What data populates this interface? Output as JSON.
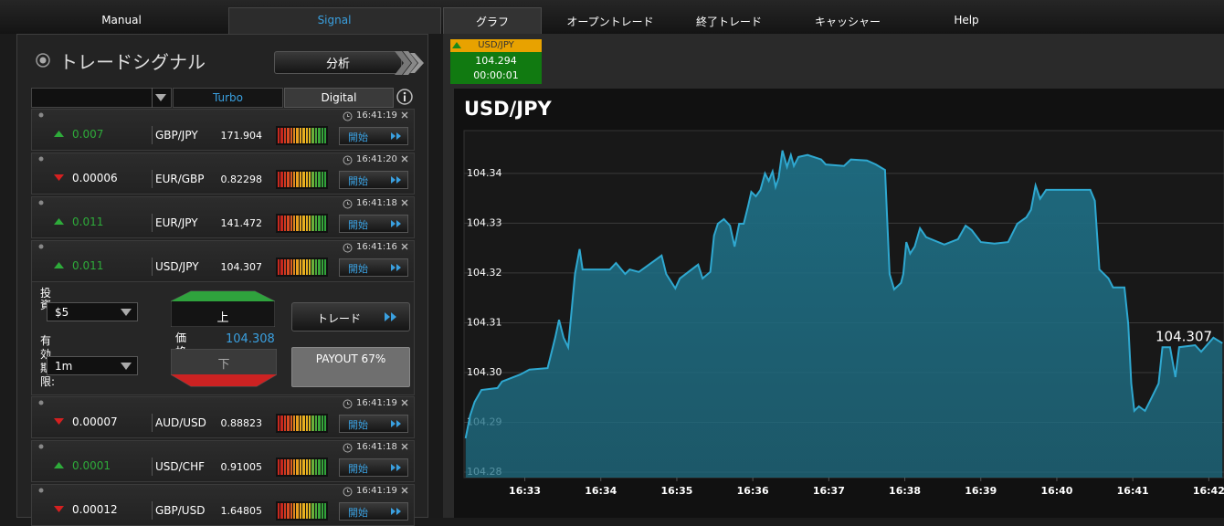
{
  "nav": {
    "tabs": [
      "Manual",
      "Signal",
      "グラフ",
      "オープントレード",
      "終了トレード",
      "キャッシャー",
      "Help"
    ]
  },
  "signal_panel": {
    "title": "トレードシグナル",
    "analyze_button": "分析",
    "filter_tabs": [
      "Turbo",
      "Digital"
    ],
    "rows": [
      {
        "direction": "up",
        "change": "0.007",
        "pair": "GBP/JPY",
        "price": "171.904",
        "time": "16:41:19",
        "button": "開始"
      },
      {
        "direction": "down",
        "change": "0.00006",
        "pair": "EUR/GBP",
        "price": "0.82298",
        "time": "16:41:20",
        "button": "開始"
      },
      {
        "direction": "up",
        "change": "0.011",
        "pair": "EUR/JPY",
        "price": "141.472",
        "time": "16:41:18",
        "button": "開始"
      },
      {
        "direction": "up",
        "change": "0.011",
        "pair": "USD/JPY",
        "price": "104.307",
        "time": "16:41:16",
        "button": "開始"
      },
      {
        "direction": "down",
        "change": "0.00007",
        "pair": "AUD/USD",
        "price": "0.88823",
        "time": "16:41:19",
        "button": "開始"
      },
      {
        "direction": "up",
        "change": "0.0001",
        "pair": "USD/CHF",
        "price": "0.91005",
        "time": "16:41:18",
        "button": "開始"
      },
      {
        "direction": "down",
        "change": "0.00012",
        "pair": "GBP/USD",
        "price": "1.64805",
        "time": "16:41:19",
        "button": "開始"
      }
    ],
    "order": {
      "investment_label": "投資:",
      "investment": "$5",
      "expiry_label": "有効期限:",
      "expiry": "1m",
      "up_button": "上",
      "price_label": "価格",
      "price": "104.308",
      "down_button": "下",
      "trade_button": "トレード",
      "payout": "PAYOUT 67%"
    }
  },
  "ticker": {
    "pair": "USD/JPY",
    "price": "104.294",
    "countdown": "00:00:01"
  },
  "chart_data": {
    "type": "area",
    "title": "USD/JPY",
    "annotation": "104.307",
    "color": "#2fa8d0",
    "fill": "#1e6d83",
    "grid": true,
    "x": [
      32.22,
      32.28,
      32.34,
      32.43,
      32.64,
      32.7,
      32.94,
      33.06,
      33.3,
      33.4,
      33.45,
      33.51,
      33.57,
      33.66,
      33.72,
      33.76,
      34.12,
      34.2,
      34.32,
      34.38,
      34.5,
      34.8,
      34.86,
      34.98,
      35.04,
      35.28,
      35.34,
      35.44,
      35.49,
      35.54,
      35.62,
      35.7,
      35.76,
      35.82,
      35.88,
      35.94,
      35.98,
      36.04,
      36.1,
      36.16,
      36.21,
      36.26,
      36.3,
      36.34,
      36.39,
      36.45,
      36.5,
      36.54,
      36.6,
      36.72,
      36.9,
      36.96,
      37.2,
      37.29,
      37.5,
      37.62,
      37.74,
      37.8,
      37.86,
      37.95,
      37.98,
      38.02,
      38.07,
      38.13,
      38.2,
      38.28,
      38.52,
      38.7,
      38.8,
      38.88,
      39.0,
      39.18,
      39.36,
      39.48,
      39.6,
      39.66,
      39.72,
      39.78,
      39.86,
      40.44,
      40.5,
      40.56,
      40.68,
      40.74,
      40.89,
      40.94,
      40.98,
      41.02,
      41.08,
      41.16,
      41.22,
      41.34,
      41.39,
      41.49,
      41.56,
      41.61,
      41.82,
      41.9,
      42.06,
      42.18
    ],
    "values": [
      104.2868,
      104.2914,
      104.2941,
      104.2965,
      104.2969,
      104.2982,
      104.2996,
      104.3006,
      104.3009,
      104.307,
      104.3106,
      104.307,
      104.3051,
      104.3198,
      104.3248,
      104.3207,
      104.3207,
      104.322,
      104.3198,
      104.3207,
      104.3202,
      104.3235,
      104.3198,
      104.3169,
      104.3189,
      104.3217,
      104.3189,
      104.3202,
      104.3275,
      104.3299,
      104.3308,
      104.3295,
      104.3253,
      104.3299,
      104.3299,
      104.3336,
      104.3363,
      104.3354,
      104.3367,
      104.34,
      104.3385,
      104.3404,
      104.3373,
      104.3391,
      104.3446,
      104.3413,
      104.3437,
      104.3415,
      104.3433,
      104.3437,
      104.3428,
      104.3418,
      104.3415,
      104.3428,
      104.3426,
      104.3418,
      104.3407,
      104.3198,
      104.3167,
      104.318,
      104.3198,
      104.3262,
      104.3239,
      104.3253,
      104.329,
      104.3272,
      104.3257,
      104.3268,
      104.3295,
      104.3286,
      104.3262,
      104.3259,
      104.3262,
      104.3299,
      104.3312,
      104.3327,
      104.3376,
      104.3349,
      104.3367,
      104.3367,
      104.3345,
      104.3207,
      104.3189,
      104.3171,
      104.3171,
      104.3097,
      104.2978,
      104.2923,
      104.2932,
      104.2923,
      104.2941,
      104.2978,
      104.3051,
      104.3051,
      104.2991,
      104.3051,
      104.3055,
      104.3042,
      104.307,
      104.3059
    ],
    "xlim": [
      32.2,
      42.2
    ],
    "ylim": [
      104.2789,
      104.3486
    ],
    "xticks": [
      {
        "value": 33,
        "label": "16:33"
      },
      {
        "value": 34,
        "label": "16:34"
      },
      {
        "value": 35,
        "label": "16:35"
      },
      {
        "value": 36,
        "label": "16:36"
      },
      {
        "value": 37,
        "label": "16:37"
      },
      {
        "value": 38,
        "label": "16:38"
      },
      {
        "value": 39,
        "label": "16:39"
      },
      {
        "value": 40,
        "label": "16:40"
      },
      {
        "value": 41,
        "label": "16:41"
      },
      {
        "value": 42,
        "label": "16:42"
      }
    ],
    "yticks": [
      104.28,
      104.29,
      {
        "value": 104.3,
        "label": "104.30"
      },
      104.31,
      104.32,
      104.33,
      104.34
    ]
  }
}
